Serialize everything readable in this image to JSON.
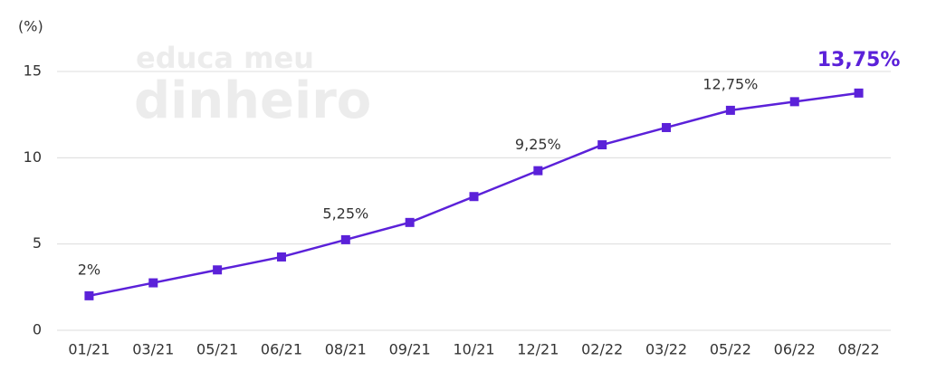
{
  "chart_data": {
    "type": "line",
    "ylabel": "(%)",
    "watermark": [
      "educa meu",
      "dinheiro"
    ],
    "categories": [
      "01/21",
      "03/21",
      "05/21",
      "06/21",
      "08/21",
      "09/21",
      "10/21",
      "12/21",
      "02/22",
      "03/22",
      "05/22",
      "06/22",
      "08/22"
    ],
    "values": [
      2,
      2.75,
      3.5,
      4.25,
      5.25,
      6.25,
      7.75,
      9.25,
      10.75,
      11.75,
      12.75,
      13.25,
      13.75
    ],
    "value_labels": [
      "2%",
      null,
      null,
      null,
      "5,25%",
      null,
      null,
      "9,25%",
      null,
      null,
      "12,75%",
      null,
      "13,75%"
    ],
    "color": "#5b21d9",
    "ylim": [
      0,
      15
    ],
    "yticks": [
      0,
      5,
      10,
      15
    ],
    "grid": true
  }
}
